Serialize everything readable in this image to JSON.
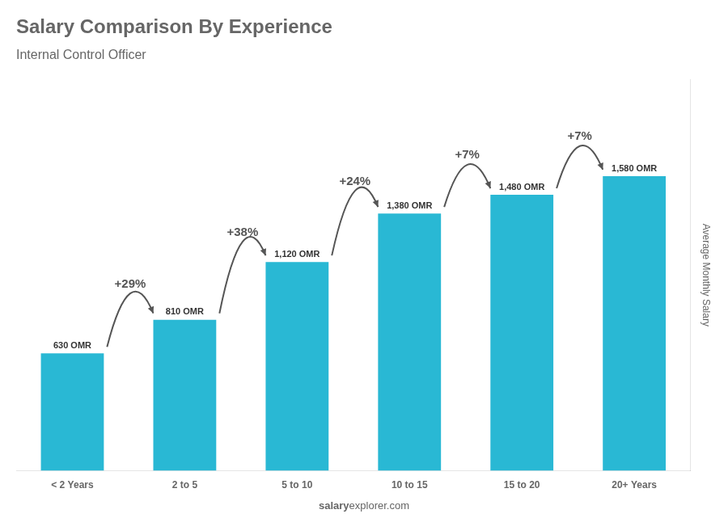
{
  "chart_data": {
    "type": "bar",
    "title": "Salary Comparison By Experience",
    "subtitle": "Internal Control Officer",
    "categories": [
      "< 2 Years",
      "2 to 5",
      "5 to 10",
      "10 to 15",
      "15 to 20",
      "20+ Years"
    ],
    "values": [
      630,
      810,
      1120,
      1380,
      1480,
      1580
    ],
    "value_labels": [
      "630 OMR",
      "810 OMR",
      "1,120 OMR",
      "1,380 OMR",
      "1,480 OMR",
      "1,580 OMR"
    ],
    "data_labels": true,
    "color": "#29b8d4",
    "ylim": [
      0,
      2100
    ],
    "y_label": "Average Monthly Salary",
    "grid": false,
    "tick_labels": "x",
    "annotations": [
      {
        "text": "+29%",
        "from": "< 2 Years",
        "to": "2 to 5"
      },
      {
        "text": "+38%",
        "from": "2 to 5",
        "to": "5 to 10"
      },
      {
        "text": "+24%",
        "from": "5 to 10",
        "to": "10 to 15"
      },
      {
        "text": "+7%",
        "from": "10 to 15",
        "to": "15 to 20"
      },
      {
        "text": "+7%",
        "from": "15 to 20",
        "to": "20+ Years"
      }
    ],
    "watermark": [
      "salary",
      "explorer.com"
    ]
  }
}
